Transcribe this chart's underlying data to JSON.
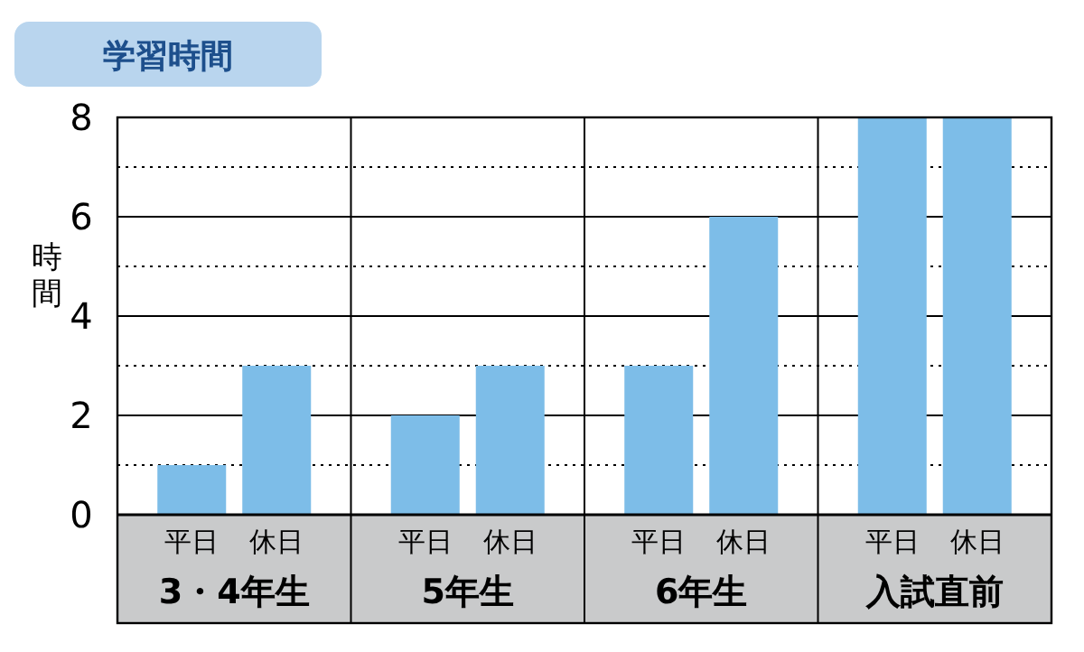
{
  "chart_data": {
    "type": "bar",
    "title": "学習時間",
    "ylabel": "時間",
    "categories": [
      "3・4年生",
      "5年生",
      "6年生",
      "入試直前"
    ],
    "series": [
      {
        "name": "平日",
        "color": "#7dbde8",
        "values": [
          1,
          2,
          3,
          8
        ]
      },
      {
        "name": "休日",
        "color": "#7dbde8",
        "values": [
          3,
          3,
          6,
          8
        ]
      }
    ],
    "ylim": [
      0,
      8
    ],
    "yticks": [
      0,
      2,
      4,
      6,
      8
    ],
    "grid": "y",
    "ref_lines": [
      {
        "axis": "y",
        "value": 1,
        "line_style": "dotted"
      },
      {
        "axis": "y",
        "value": 3,
        "line_style": "dotted"
      },
      {
        "axis": "y",
        "value": 5,
        "line_style": "dotted"
      },
      {
        "axis": "y",
        "value": 7,
        "line_style": "dotted"
      }
    ]
  }
}
